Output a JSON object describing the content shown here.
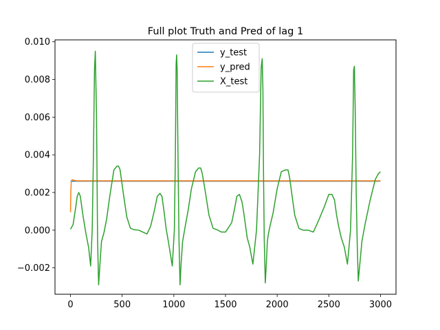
{
  "chart_data": {
    "type": "line",
    "title": "Full plot Truth and Pred of lag 1",
    "xlabel": "",
    "ylabel": "",
    "xlim": [
      -150,
      3150
    ],
    "ylim": [
      -0.0034,
      0.0101
    ],
    "x_ticks": [
      0,
      500,
      1000,
      1500,
      2000,
      2500,
      3000
    ],
    "x_tick_labels": [
      "0",
      "500",
      "1000",
      "1500",
      "2000",
      "2500",
      "3000"
    ],
    "y_ticks": [
      -0.002,
      0.0,
      0.002,
      0.004,
      0.006,
      0.008,
      0.01
    ],
    "y_tick_labels": [
      "−0.002",
      "0.000",
      "0.002",
      "0.004",
      "0.006",
      "0.008",
      "0.010"
    ],
    "grid": false,
    "legend_position": "top-center",
    "series": [
      {
        "name": "y_test",
        "color": "#1f77b4",
        "x": [
          0,
          3000
        ],
        "y": [
          0.0026,
          0.0026
        ]
      },
      {
        "name": "y_pred",
        "color": "#ff7f0e",
        "x": [
          0,
          3,
          8,
          15,
          30,
          60,
          3000
        ],
        "y": [
          0.00095,
          0.002,
          0.0026,
          0.00268,
          0.00265,
          0.00262,
          0.00262
        ]
      },
      {
        "name": "X_test",
        "color": "#2ca02c",
        "x": [
          0,
          25,
          50,
          65,
          80,
          95,
          120,
          150,
          175,
          195,
          210,
          222,
          232,
          240,
          252,
          262,
          272,
          285,
          300,
          325,
          350,
          380,
          420,
          450,
          465,
          480,
          510,
          545,
          580,
          620,
          660,
          700,
          740,
          775,
          810,
          840,
          865,
          885,
          905,
          925,
          950,
          985,
          1005,
          1015,
          1022,
          1027,
          1032,
          1040,
          1050,
          1060,
          1070,
          1085,
          1110,
          1140,
          1170,
          1210,
          1240,
          1260,
          1275,
          1300,
          1340,
          1380,
          1420,
          1460,
          1500,
          1560,
          1590,
          1610,
          1635,
          1660,
          1680,
          1695,
          1710,
          1735,
          1765,
          1800,
          1830,
          1845,
          1855,
          1862,
          1868,
          1875,
          1885,
          1895,
          1905,
          1915,
          1930,
          1960,
          2000,
          2040,
          2080,
          2105,
          2120,
          2140,
          2170,
          2210,
          2250,
          2300,
          2350,
          2400,
          2460,
          2500,
          2530,
          2555,
          2575,
          2595,
          2620,
          2650,
          2680,
          2710,
          2730,
          2740,
          2747,
          2755,
          2765,
          2775,
          2785,
          2800,
          2820,
          2850,
          2900,
          2950,
          2980,
          3000
        ],
        "y": [
          5e-05,
          0.0003,
          0.0012,
          0.0018,
          0.002,
          0.0018,
          0.0008,
          -0.0002,
          -0.0009,
          -0.0019,
          0.0,
          0.004,
          0.0085,
          0.0095,
          0.006,
          -0.0005,
          -0.0029,
          -0.0018,
          -0.0006,
          -0.0001,
          0.0006,
          0.0018,
          0.0032,
          0.0034,
          0.0034,
          0.0032,
          0.002,
          0.0007,
          0.0001,
          2e-05,
          0.0,
          -0.0001,
          -0.0002,
          0.0002,
          0.001,
          0.0018,
          0.00195,
          0.0018,
          0.001,
          0.0001,
          -0.0007,
          -0.0019,
          0.0,
          0.004,
          0.0088,
          0.0093,
          0.0085,
          0.004,
          -0.0005,
          -0.0029,
          -0.0018,
          -0.0006,
          0.0002,
          0.0011,
          0.0022,
          0.0031,
          0.0033,
          0.0033,
          0.003,
          0.0022,
          0.0008,
          0.0001,
          2e-05,
          -0.0001,
          -0.0001,
          0.0004,
          0.0012,
          0.0018,
          0.0019,
          0.0015,
          0.0008,
          0.0002,
          -0.0004,
          -0.0009,
          -0.0018,
          0.0,
          0.004,
          0.0086,
          0.0091,
          0.0075,
          0.003,
          -0.0005,
          -0.0028,
          -0.0018,
          -0.0006,
          -0.0002,
          0.0002,
          0.0009,
          0.0022,
          0.0031,
          0.0032,
          0.0032,
          0.0028,
          0.002,
          0.0008,
          0.0001,
          0.0,
          0.0,
          -0.0001,
          0.0005,
          0.0013,
          0.0019,
          0.0019,
          0.0016,
          0.0008,
          0.0002,
          -0.0004,
          -0.0009,
          -0.0018,
          0.0,
          0.004,
          0.0085,
          0.0087,
          0.0065,
          0.002,
          -0.0008,
          -0.0027,
          -0.0018,
          -0.0006,
          0.0003,
          0.0016,
          0.0027,
          0.003,
          0.0031
        ]
      }
    ]
  }
}
